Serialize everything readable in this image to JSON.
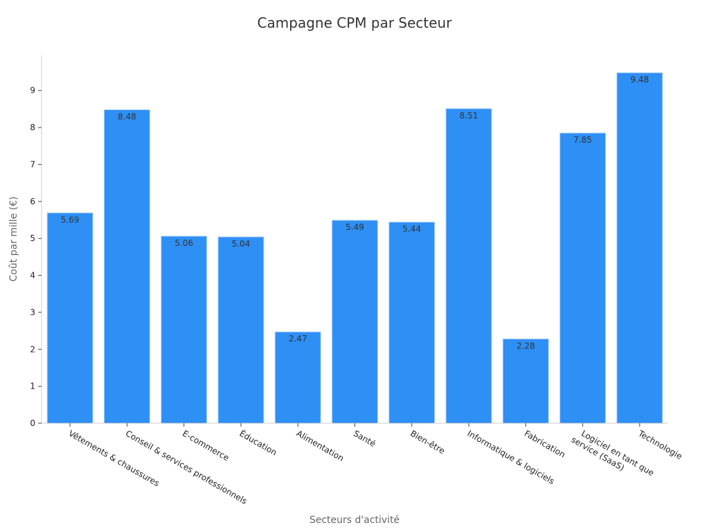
{
  "chart_data": {
    "type": "bar",
    "title": "Campagne CPM par Secteur",
    "xlabel": "Secteurs d'activité",
    "ylabel": "Coût par mille (€)",
    "categories": [
      [
        "Vêtements & chaussures"
      ],
      [
        "Conseil & services professionnels"
      ],
      [
        "E-commerce"
      ],
      [
        "Éducation"
      ],
      [
        "Alimentation"
      ],
      [
        "Santé"
      ],
      [
        "Bien-être"
      ],
      [
        "Informatique & logiciels"
      ],
      [
        "Fabrication"
      ],
      [
        "Logiciel en tant que",
        "service (SaaS)"
      ],
      [
        "Technologie"
      ]
    ],
    "values": [
      5.69,
      8.48,
      5.06,
      5.04,
      2.47,
      5.49,
      5.44,
      8.51,
      2.28,
      7.85,
      9.48
    ],
    "data_labels": [
      "5.69",
      "8.48",
      "5.06",
      "5.04",
      "2.47",
      "5.49",
      "5.44",
      "8.51",
      "2.28",
      "7.85",
      "9.48"
    ],
    "yticks": [
      0,
      1,
      2,
      3,
      4,
      5,
      6,
      7,
      8,
      9
    ],
    "ylim": [
      0,
      9.95
    ],
    "grid": false,
    "legend": "none",
    "colors": {
      "bar": "#2E8FF5",
      "bar_stroke": "#A9CFF8",
      "axis": "#CCCCCC",
      "tick": "#444444"
    }
  }
}
